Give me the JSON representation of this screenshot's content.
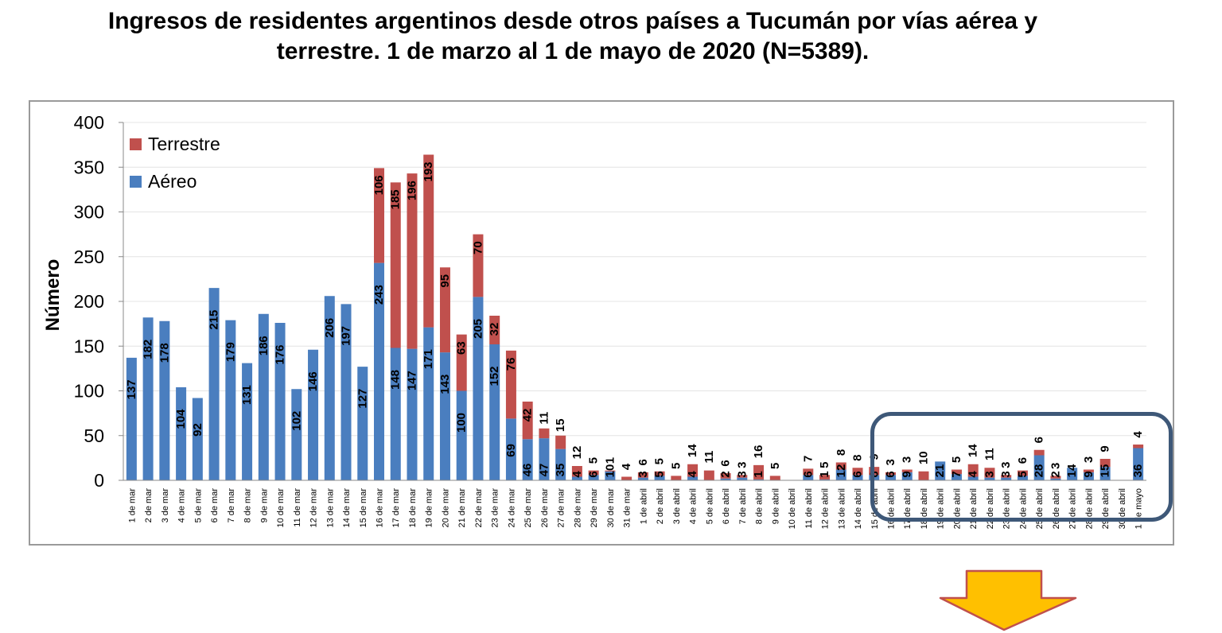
{
  "title_line1": "Ingresos de residentes argentinos desde otros países a Tucumán por vías aérea y",
  "title_line2": "terrestre. 1 de marzo al 1 de mayo de 2020 (N=5389).",
  "chart_data": {
    "type": "bar",
    "stacked": true,
    "ylabel": "Número",
    "ylim": [
      0,
      400
    ],
    "yticks": [
      0,
      50,
      100,
      150,
      200,
      250,
      300,
      350,
      400
    ],
    "grid": true,
    "legend_position": "top-left",
    "categories": [
      "1 de mar",
      "2 de mar",
      "3 de mar",
      "4 de mar",
      "5 de mar",
      "6 de mar",
      "7 de mar",
      "8 de mar",
      "9 de mar",
      "10 de mar",
      "11 de mar",
      "12 de mar",
      "13 de mar",
      "14 de mar",
      "15 de mar",
      "16 de mar",
      "17 de mar",
      "18 de mar",
      "19 de mar",
      "20 de mar",
      "21 de mar",
      "22 de mar",
      "23 de mar",
      "24 de mar",
      "25 de mar",
      "26 de mar",
      "27 de mar",
      "28 de mar",
      "29 de mar",
      "30 de mar",
      "31 de mar",
      "1 de abril",
      "2 de abril",
      "3 de abril",
      "4 de abril",
      "5 de abril",
      "6 de abril",
      "7 de abril",
      "8 de abril",
      "9 de abril",
      "10 de abril",
      "11 de abril",
      "12 de abril",
      "13 de abril",
      "14 de abril",
      "15 de abril",
      "16 de abril",
      "17 de abril",
      "18 de abril",
      "19 de abril",
      "20 de abril",
      "21 de abril",
      "22 de abril",
      "23 de abril",
      "24 de abril",
      "25 de abril",
      "26 de abril",
      "27 de abril",
      "28 de abril",
      "29 de abril",
      "30 de abril",
      "1 de mayo"
    ],
    "series": [
      {
        "name": "Aéreo",
        "color": "#4a7ebf",
        "values": [
          137,
          182,
          178,
          104,
          92,
          215,
          179,
          131,
          186,
          176,
          102,
          146,
          206,
          197,
          127,
          243,
          148,
          147,
          171,
          143,
          100,
          205,
          152,
          69,
          46,
          47,
          35,
          4,
          6,
          10,
          0,
          3,
          5,
          0,
          4,
          0,
          2,
          3,
          1,
          0,
          0,
          6,
          1,
          12,
          6,
          6,
          6,
          9,
          0,
          21,
          7,
          4,
          3,
          3,
          5,
          28,
          2,
          14,
          9,
          15,
          0,
          36
        ]
      },
      {
        "name": "Terrestre",
        "color": "#c0504d",
        "values": [
          0,
          0,
          0,
          0,
          0,
          0,
          0,
          0,
          0,
          0,
          0,
          0,
          0,
          0,
          0,
          106,
          185,
          196,
          193,
          95,
          63,
          70,
          32,
          76,
          42,
          11,
          15,
          12,
          5,
          1,
          4,
          6,
          5,
          5,
          14,
          11,
          6,
          3,
          16,
          5,
          0,
          7,
          5,
          8,
          8,
          9,
          3,
          3,
          10,
          0,
          5,
          14,
          11,
          3,
          6,
          6,
          3,
          0,
          3,
          9,
          0,
          4
        ]
      }
    ],
    "aereo_labels": [
      "137",
      "182",
      "178",
      "104",
      "92",
      "215",
      "179",
      "131",
      "186",
      "176",
      "102",
      "146",
      "206",
      "197",
      "127",
      "243",
      "148",
      "147",
      "171",
      "143",
      "100",
      "205",
      "152",
      "69",
      "46",
      "47",
      "35",
      "4",
      "6",
      "10",
      "",
      "3",
      "5",
      "",
      "4",
      "",
      "2",
      "3",
      "1",
      "",
      "",
      "6",
      "1",
      "12",
      "6",
      "6",
      "6",
      "9",
      "",
      "21",
      "7",
      "4",
      "3",
      "3",
      "5",
      "28",
      "2",
      "14",
      "9",
      "15",
      "",
      "36"
    ],
    "terrestre_labels": [
      "",
      "",
      "",
      "",
      "",
      "",
      "",
      "",
      "",
      "",
      "",
      "",
      "",
      "",
      "",
      "106",
      "185",
      "196",
      "193",
      "95",
      "63",
      "70",
      "32",
      "76",
      "42",
      "11",
      "15",
      "12",
      "5",
      "1",
      "4",
      "6",
      "5",
      "5",
      "14",
      "11",
      "6",
      "3",
      "16",
      "5",
      "",
      "7",
      "5",
      "8",
      "8",
      "9",
      "3",
      "3",
      "10",
      "",
      "5",
      "14",
      "11",
      "3",
      "6",
      "6",
      "3",
      "",
      "3",
      "9",
      "",
      "4"
    ]
  }
}
